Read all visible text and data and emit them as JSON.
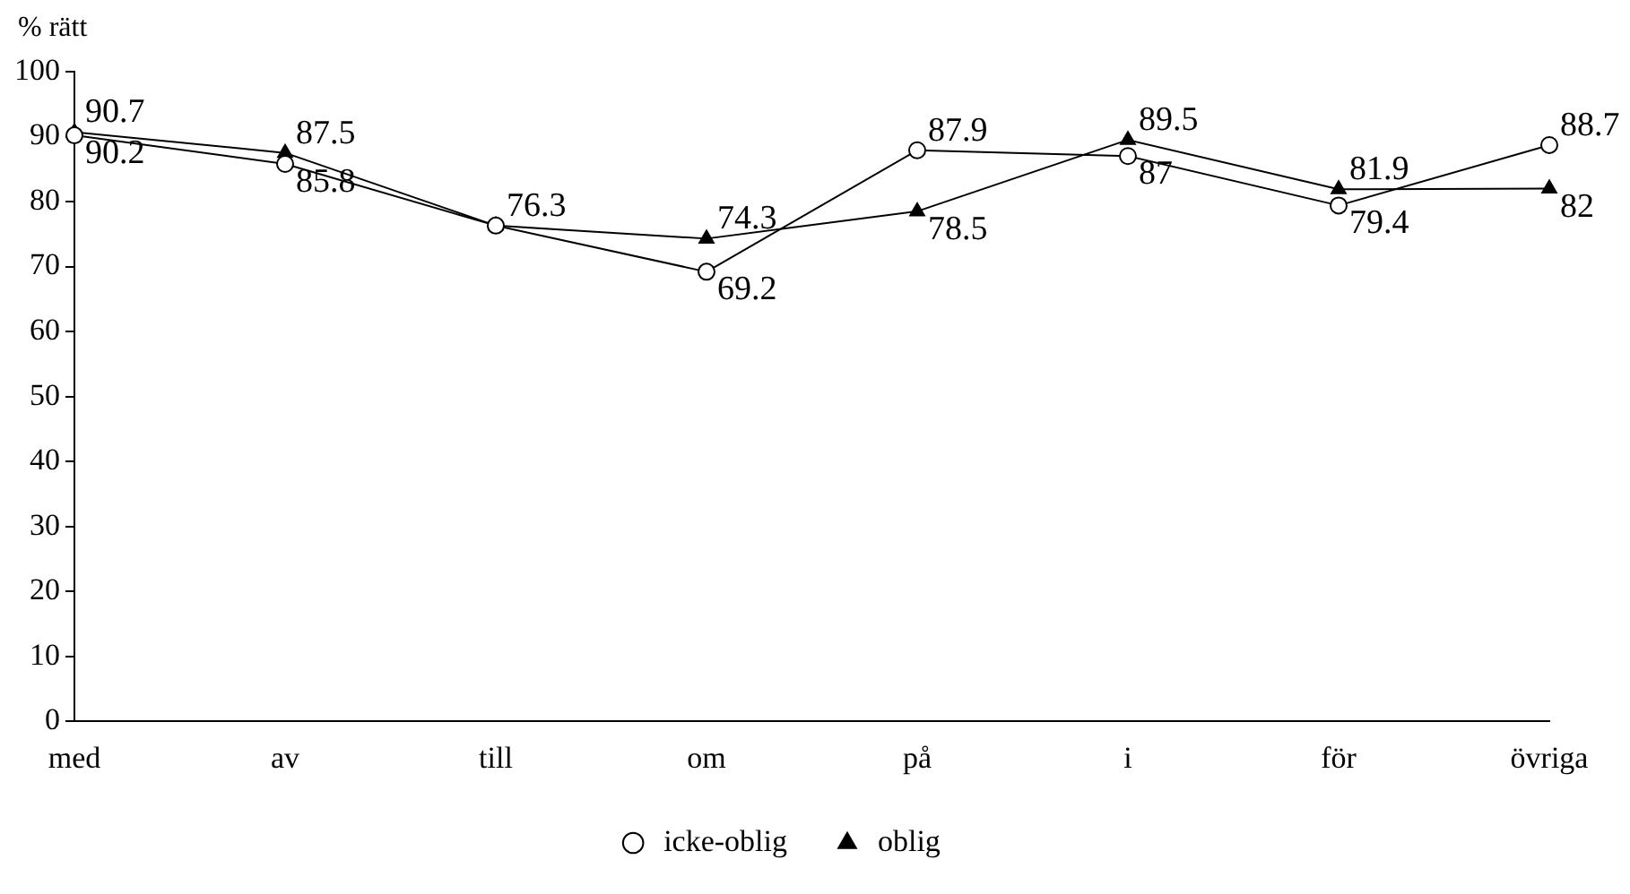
{
  "chart_data": {
    "type": "line",
    "ylabel": "% rätt",
    "categories": [
      "med",
      "av",
      "till",
      "om",
      "på",
      "i",
      "för",
      "övriga"
    ],
    "series": [
      {
        "name": "icke-oblig",
        "color": "#000000",
        "marker": "circle",
        "values": [
          90.2,
          85.8,
          76.3,
          69.2,
          87.9,
          87,
          79.4,
          88.7
        ],
        "value_labels": [
          "90.2",
          "85.8",
          null,
          "69.2",
          "87.9",
          "87",
          "79.4",
          "88.7"
        ]
      },
      {
        "name": "oblig",
        "color": "#000000",
        "marker": "triangle",
        "values": [
          90.7,
          87.5,
          76.3,
          74.3,
          78.5,
          89.5,
          81.9,
          82
        ],
        "value_labels": [
          "90.7",
          "87.5",
          "76.3",
          "74.3",
          "78.5",
          "89.5",
          "81.9",
          "82"
        ]
      }
    ],
    "ylim": [
      0,
      100
    ],
    "yticks": [
      0,
      10,
      20,
      30,
      40,
      50,
      60,
      70,
      80,
      90,
      100
    ],
    "grid": false,
    "legend": "bottom",
    "line_style": "solid"
  }
}
